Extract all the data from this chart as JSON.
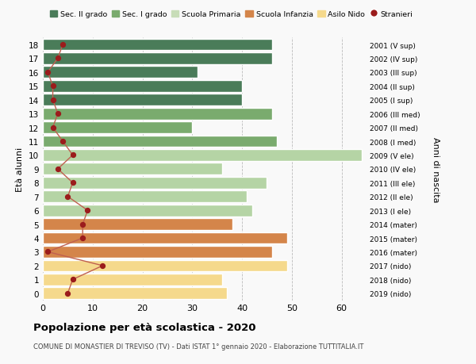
{
  "ages": [
    18,
    17,
    16,
    15,
    14,
    13,
    12,
    11,
    10,
    9,
    8,
    7,
    6,
    5,
    4,
    3,
    2,
    1,
    0
  ],
  "anni_nascita": [
    "2001 (V sup)",
    "2002 (IV sup)",
    "2003 (III sup)",
    "2004 (II sup)",
    "2005 (I sup)",
    "2006 (III med)",
    "2007 (II med)",
    "2008 (I med)",
    "2009 (V ele)",
    "2010 (IV ele)",
    "2011 (III ele)",
    "2012 (II ele)",
    "2013 (I ele)",
    "2014 (mater)",
    "2015 (mater)",
    "2016 (mater)",
    "2017 (nido)",
    "2018 (nido)",
    "2019 (nido)"
  ],
  "bar_values": [
    46,
    46,
    31,
    40,
    40,
    46,
    30,
    47,
    64,
    36,
    45,
    41,
    42,
    38,
    49,
    46,
    49,
    36,
    37
  ],
  "bar_colors": [
    "#4a7c59",
    "#4a7c59",
    "#4a7c59",
    "#4a7c59",
    "#4a7c59",
    "#7aab6e",
    "#7aab6e",
    "#7aab6e",
    "#b5d4a5",
    "#b5d4a5",
    "#b5d4a5",
    "#b5d4a5",
    "#b5d4a5",
    "#d4854a",
    "#d4854a",
    "#d4854a",
    "#f5d98c",
    "#f5d98c",
    "#f5d98c"
  ],
  "stranieri_values": [
    4,
    3,
    1,
    2,
    2,
    3,
    2,
    4,
    6,
    3,
    6,
    5,
    9,
    8,
    8,
    1,
    12,
    6,
    5
  ],
  "xlim": [
    0,
    65
  ],
  "xticks": [
    0,
    10,
    20,
    30,
    40,
    50,
    60
  ],
  "title": "Popolazione per età scolastica - 2020",
  "subtitle": "COMUNE DI MONASTIER DI TREVISO (TV) - Dati ISTAT 1° gennaio 2020 - Elaborazione TUTTITALIA.IT",
  "ylabel": "Età alunni",
  "right_label": "Anni di nascita",
  "legend_labels": [
    "Sec. II grado",
    "Sec. I grado",
    "Scuola Primaria",
    "Scuola Infanzia",
    "Asilo Nido",
    "Stranieri"
  ],
  "legend_colors": [
    "#4a7c59",
    "#7aab6e",
    "#c8ddb8",
    "#d4854a",
    "#f5d98c",
    "#9b1c1c"
  ],
  "background_color": "#f9f9f9",
  "grid_color": "#bbbbbb",
  "stranieri_color": "#9b1c1c",
  "stranieri_line_color": "#c06050"
}
